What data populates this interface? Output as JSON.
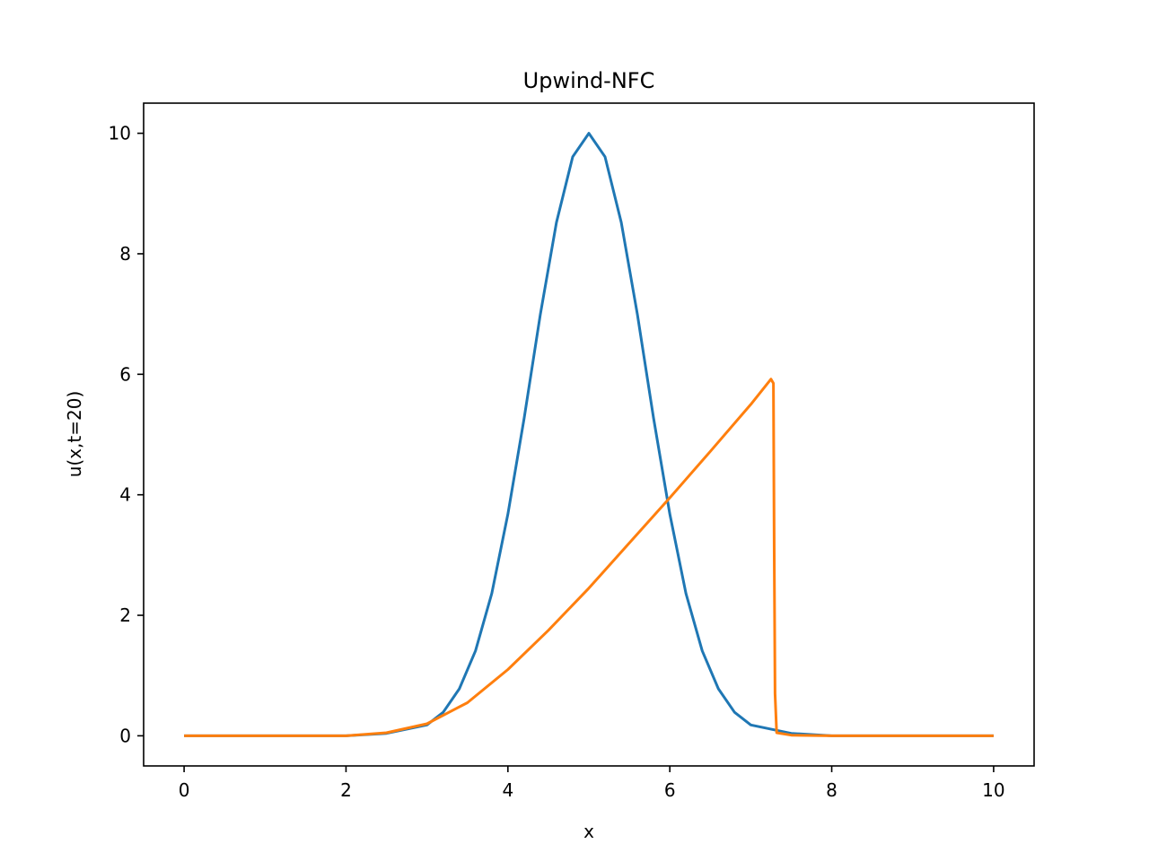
{
  "chart_data": {
    "type": "line",
    "title": "Upwind-NFC",
    "xlabel": "x",
    "ylabel": "u(x,t=20)",
    "xlim": [
      -0.5,
      10.5
    ],
    "ylim": [
      -0.5,
      10.5
    ],
    "xticks": [
      0,
      2,
      4,
      6,
      8,
      10
    ],
    "yticks": [
      0,
      2,
      4,
      6,
      8,
      10
    ],
    "xtick_labels": [
      "0",
      "2",
      "4",
      "6",
      "8",
      "10"
    ],
    "ytick_labels": [
      "0",
      "2",
      "4",
      "6",
      "8",
      "10"
    ],
    "grid": false,
    "legend": "none",
    "series": [
      {
        "color": "#1f77b4",
        "x": [
          0,
          1,
          2,
          2.5,
          3,
          3.2,
          3.4,
          3.6,
          3.8,
          4,
          4.2,
          4.4,
          4.6,
          4.8,
          5,
          5.2,
          5.4,
          5.6,
          5.8,
          6,
          6.2,
          6.4,
          6.6,
          6.8,
          7,
          7.5,
          8,
          9,
          10
        ],
        "y": [
          0,
          0,
          0,
          0.04,
          0.18,
          0.39,
          0.78,
          1.41,
          2.36,
          3.68,
          5.27,
          6.99,
          8.52,
          9.61,
          10,
          9.61,
          8.52,
          6.99,
          5.27,
          3.68,
          2.36,
          1.41,
          0.78,
          0.39,
          0.18,
          0.04,
          0,
          0,
          0
        ]
      },
      {
        "color": "#ff7f0e",
        "x": [
          0,
          1,
          2,
          2.5,
          3,
          3.5,
          4,
          4.5,
          5,
          5.5,
          6,
          6.5,
          7,
          7.25,
          7.28,
          7.29,
          7.3,
          7.32,
          7.5,
          8,
          9,
          10
        ],
        "y": [
          0,
          0,
          0,
          0.05,
          0.2,
          0.55,
          1.1,
          1.75,
          2.45,
          3.2,
          3.95,
          4.72,
          5.5,
          5.92,
          5.85,
          3.0,
          0.7,
          0.05,
          0.01,
          0,
          0,
          0
        ]
      }
    ]
  }
}
